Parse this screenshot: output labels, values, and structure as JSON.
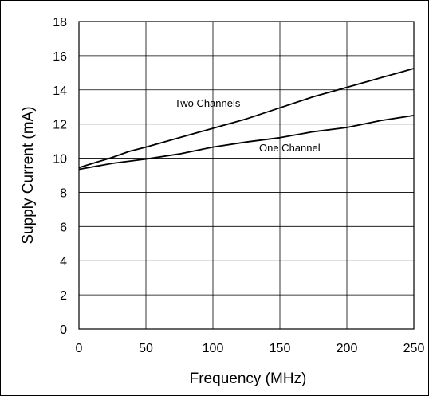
{
  "chart_data": {
    "type": "line",
    "title": "",
    "xlabel": "Frequency (MHz)",
    "ylabel": "Supply Current (mA)",
    "xlim": [
      0,
      250
    ],
    "ylim": [
      0,
      18
    ],
    "xticks": [
      0,
      50,
      100,
      150,
      200,
      250
    ],
    "yticks": [
      0,
      2,
      4,
      6,
      8,
      10,
      12,
      14,
      16,
      18
    ],
    "grid": true,
    "legend": "none",
    "series": [
      {
        "name": "Two Channels",
        "x": [
          0,
          12.5,
          25,
          37.5,
          50,
          75,
          100,
          125,
          150,
          175,
          200,
          225,
          250
        ],
        "y": [
          9.45,
          9.75,
          10.05,
          10.4,
          10.65,
          11.2,
          11.75,
          12.3,
          12.95,
          13.6,
          14.15,
          14.7,
          15.25
        ]
      },
      {
        "name": "One Channel",
        "x": [
          0,
          25,
          50,
          75,
          100,
          125,
          150,
          175,
          200,
          225,
          250
        ],
        "y": [
          9.35,
          9.7,
          9.95,
          10.25,
          10.65,
          10.95,
          11.2,
          11.55,
          11.8,
          12.2,
          12.5
        ]
      }
    ],
    "colors": {
      "line": "#000000",
      "grid": "#000000",
      "background": "#ffffff"
    }
  }
}
